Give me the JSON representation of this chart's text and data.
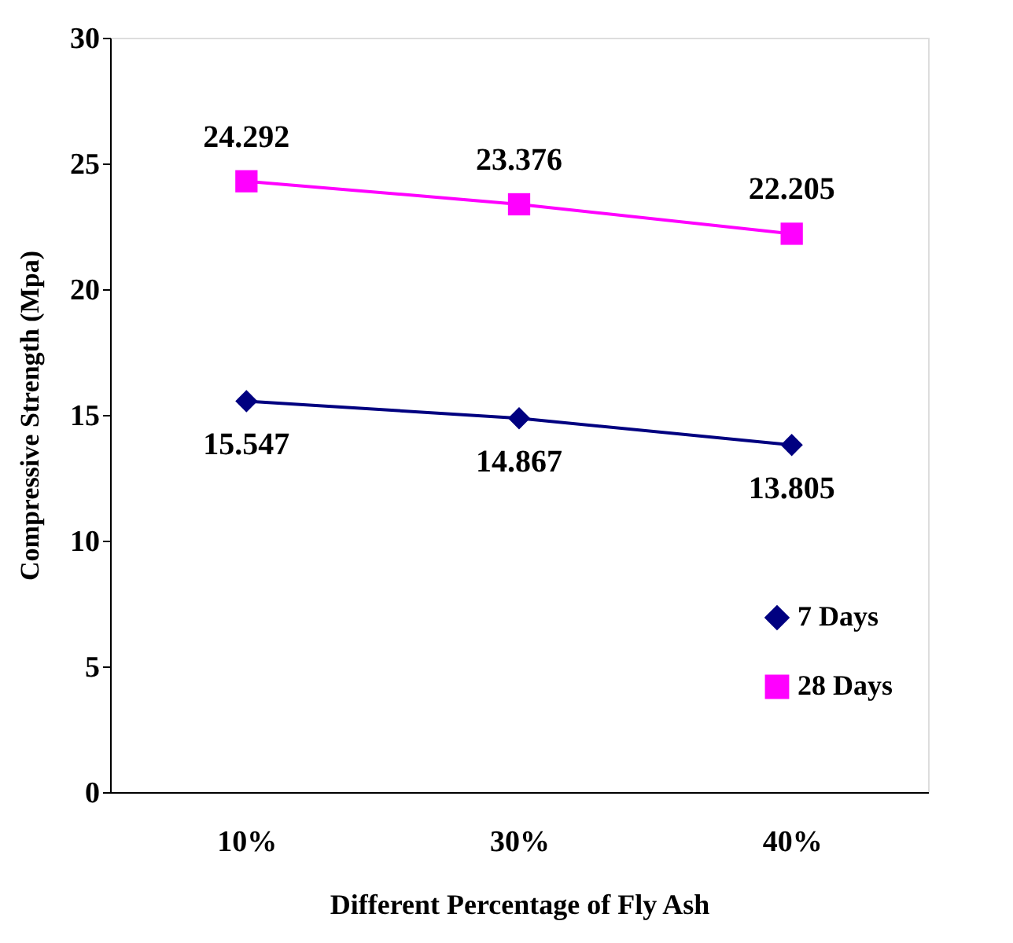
{
  "chart_data": {
    "type": "line",
    "xlabel": "Different Percentage of Fly Ash",
    "ylabel": "Compressive Strength (Mpa)",
    "categories": [
      "10%",
      "30%",
      "40%"
    ],
    "series": [
      {
        "name": "7 Days",
        "color": "#000080",
        "marker": "diamond",
        "values": [
          15.547,
          14.867,
          13.805
        ]
      },
      {
        "name": "28 Days",
        "color": "#ff00ff",
        "marker": "square",
        "values": [
          24.292,
          23.376,
          22.205
        ]
      }
    ],
    "ylim": [
      0,
      30
    ],
    "yticks": [
      0,
      5,
      10,
      15,
      20,
      25,
      30
    ],
    "grid": false,
    "legend": "right",
    "data_labels": true,
    "line_style": "solid"
  }
}
